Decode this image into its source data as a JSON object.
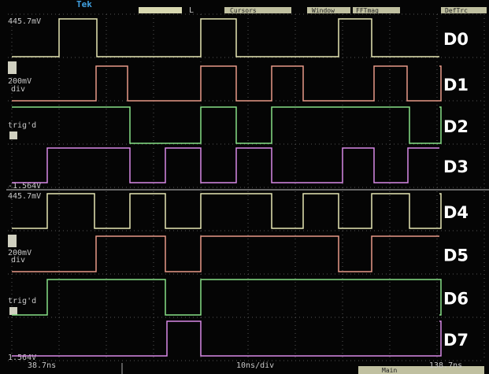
{
  "header": {
    "logo": "Tek",
    "timebase_mode": "L",
    "menu": [
      "Cursors",
      "Window",
      "FFTmag",
      "DefTrc"
    ]
  },
  "panes": [
    {
      "top_level": "445.7mV",
      "scale": "200mV",
      "scale_unit": "div",
      "trigger": "trig'd",
      "bottom_level": "-1.564V"
    },
    {
      "top_level": "445.7mV",
      "scale": "200mV",
      "scale_unit": "div",
      "trigger": "trig'd",
      "bottom_level": "1.564V"
    }
  ],
  "channels": [
    "D0",
    "D1",
    "D2",
    "D3",
    "D4",
    "D5",
    "D6",
    "D7"
  ],
  "footer": {
    "left_time": "38.7ns",
    "timebase": "10ns/div",
    "right_time": "138.7ns",
    "status": "Main"
  }
}
